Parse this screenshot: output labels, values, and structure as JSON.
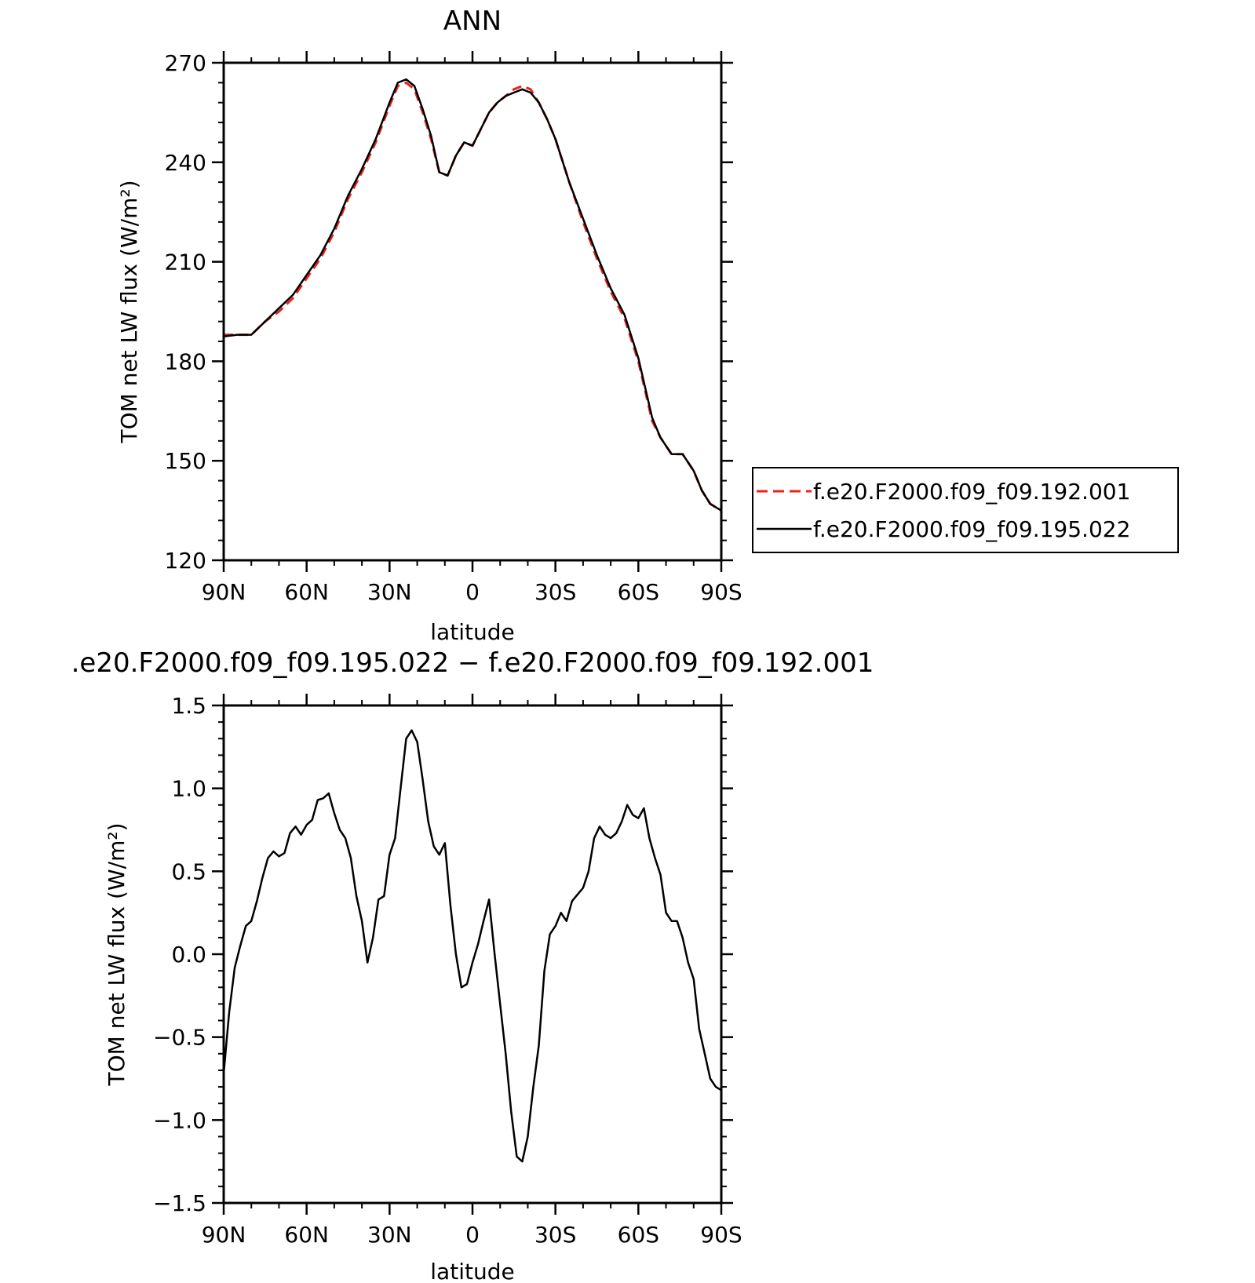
{
  "figure": {
    "top_title": "ANN",
    "bottom_title": ".e20.F2000.f09_f09.195.022 − f.e20.F2000.f09_f09.192.001",
    "legend": [
      {
        "label": "f.e20.F2000.f09_f09.192.001",
        "color": "#e8231e",
        "dash": "dashed"
      },
      {
        "label": "f.e20.F2000.f09_f09.195.022",
        "color": "#000000",
        "dash": "solid"
      }
    ]
  },
  "chart_data": [
    {
      "type": "line",
      "title": "ANN",
      "xlabel": "latitude",
      "ylabel": "TOM net LW flux (W/m²)",
      "xlim": [
        90,
        -90
      ],
      "ylim": [
        120,
        270
      ],
      "xticks": [
        90,
        60,
        30,
        0,
        -30,
        -60,
        -90
      ],
      "xtick_labels": [
        "90N",
        "60N",
        "30N",
        "0",
        "30S",
        "60S",
        "90S"
      ],
      "yticks": [
        120,
        150,
        180,
        210,
        240,
        270
      ],
      "ytick_labels": [
        "120",
        "150",
        "180",
        "210",
        "240",
        "270"
      ],
      "grid": false,
      "legend_position": "right",
      "series": [
        {
          "name": "f.e20.F2000.f09_f09.192.001",
          "color": "#e8231e",
          "dash": "dashed",
          "x": [
            90,
            85,
            80,
            75,
            70,
            65,
            60,
            55,
            50,
            45,
            40,
            35,
            30,
            27,
            24,
            21,
            18,
            15,
            12,
            9,
            6,
            3,
            0,
            -3,
            -6,
            -9,
            -12,
            -15,
            -18,
            -21,
            -24,
            -27,
            -30,
            -35,
            -40,
            -45,
            -50,
            -55,
            -60,
            -65,
            -68,
            -72,
            -76,
            -80,
            -83,
            -86,
            -88,
            -90
          ],
          "y": [
            188,
            188,
            188,
            192,
            195,
            199,
            205,
            211,
            219,
            229,
            237,
            246,
            257,
            263,
            264,
            262,
            255,
            247,
            237,
            236,
            242,
            246,
            245,
            250,
            255,
            258,
            260,
            262,
            263,
            262,
            258,
            253,
            247,
            234,
            222,
            211,
            201,
            193,
            180,
            162,
            157,
            152,
            152,
            147,
            141,
            137,
            136,
            135
          ]
        },
        {
          "name": "f.e20.F2000.f09_f09.195.022",
          "color": "#000000",
          "dash": "solid",
          "x": [
            90,
            85,
            80,
            75,
            70,
            65,
            60,
            55,
            50,
            45,
            40,
            35,
            30,
            27,
            24,
            21,
            18,
            15,
            12,
            9,
            6,
            3,
            0,
            -3,
            -6,
            -9,
            -12,
            -15,
            -18,
            -21,
            -24,
            -27,
            -30,
            -35,
            -40,
            -45,
            -50,
            -55,
            -60,
            -65,
            -68,
            -72,
            -76,
            -80,
            -83,
            -86,
            -88,
            -90
          ],
          "y": [
            187.5,
            188,
            188,
            192,
            196,
            200,
            206,
            212,
            220,
            230,
            238,
            247,
            258,
            264,
            265,
            263,
            256,
            248,
            237,
            236,
            242,
            246,
            245,
            250,
            255,
            258,
            260,
            261,
            262,
            261,
            258,
            253,
            247,
            234,
            223,
            212,
            202,
            194,
            181,
            163,
            157,
            152,
            152,
            147,
            141,
            137,
            136,
            135
          ]
        }
      ]
    },
    {
      "type": "line",
      "title": ".e20.F2000.f09_f09.195.022 − f.e20.F2000.f09_f09.192.001",
      "xlabel": "latitude",
      "ylabel": "TOM net LW flux (W/m²)",
      "xlim": [
        90,
        -90
      ],
      "ylim": [
        -1.5,
        1.5
      ],
      "xticks": [
        90,
        60,
        30,
        0,
        -30,
        -60,
        -90
      ],
      "xtick_labels": [
        "90N",
        "60N",
        "30N",
        "0",
        "30S",
        "60S",
        "90S"
      ],
      "yticks": [
        -1.5,
        -1.0,
        -0.5,
        0.0,
        0.5,
        1.0,
        1.5
      ],
      "ytick_labels": [
        "−1.5",
        "−1.0",
        "−0.5",
        "0.0",
        "0.5",
        "1.0",
        "1.5"
      ],
      "grid": false,
      "series": [
        {
          "color": "#000000",
          "dash": "solid",
          "x": [
            90,
            88,
            86,
            84,
            82,
            80,
            78,
            76,
            74,
            72,
            70,
            68,
            66,
            64,
            62,
            60,
            58,
            56,
            54,
            52,
            50,
            48,
            46,
            44,
            42,
            40,
            38,
            36,
            34,
            32,
            30,
            28,
            26,
            24,
            22,
            20,
            18,
            16,
            14,
            12,
            10,
            8,
            6,
            4,
            2,
            0,
            -2,
            -4,
            -6,
            -8,
            -10,
            -12,
            -14,
            -16,
            -18,
            -20,
            -22,
            -24,
            -26,
            -28,
            -30,
            -32,
            -34,
            -36,
            -38,
            -40,
            -42,
            -44,
            -46,
            -48,
            -50,
            -52,
            -54,
            -56,
            -58,
            -60,
            -62,
            -64,
            -66,
            -68,
            -70,
            -72,
            -74,
            -76,
            -78,
            -80,
            -82,
            -84,
            -86,
            -88,
            -90
          ],
          "y": [
            -0.72,
            -0.35,
            -0.08,
            0.05,
            0.17,
            0.2,
            0.32,
            0.46,
            0.58,
            0.62,
            0.59,
            0.61,
            0.73,
            0.77,
            0.72,
            0.78,
            0.81,
            0.93,
            0.94,
            0.97,
            0.85,
            0.75,
            0.7,
            0.58,
            0.35,
            0.2,
            -0.05,
            0.1,
            0.33,
            0.35,
            0.6,
            0.7,
            1.0,
            1.3,
            1.35,
            1.28,
            1.05,
            0.8,
            0.65,
            0.6,
            0.67,
            0.3,
            0.0,
            -0.2,
            -0.18,
            -0.05,
            0.06,
            0.2,
            0.33,
            0.0,
            -0.3,
            -0.6,
            -0.95,
            -1.22,
            -1.25,
            -1.1,
            -0.8,
            -0.55,
            -0.1,
            0.12,
            0.17,
            0.25,
            0.2,
            0.32,
            0.36,
            0.4,
            0.5,
            0.7,
            0.77,
            0.72,
            0.7,
            0.73,
            0.8,
            0.9,
            0.84,
            0.82,
            0.88,
            0.7,
            0.58,
            0.48,
            0.25,
            0.2,
            0.2,
            0.1,
            -0.05,
            -0.15,
            -0.45,
            -0.6,
            -0.75,
            -0.8,
            -0.82
          ]
        }
      ]
    }
  ]
}
